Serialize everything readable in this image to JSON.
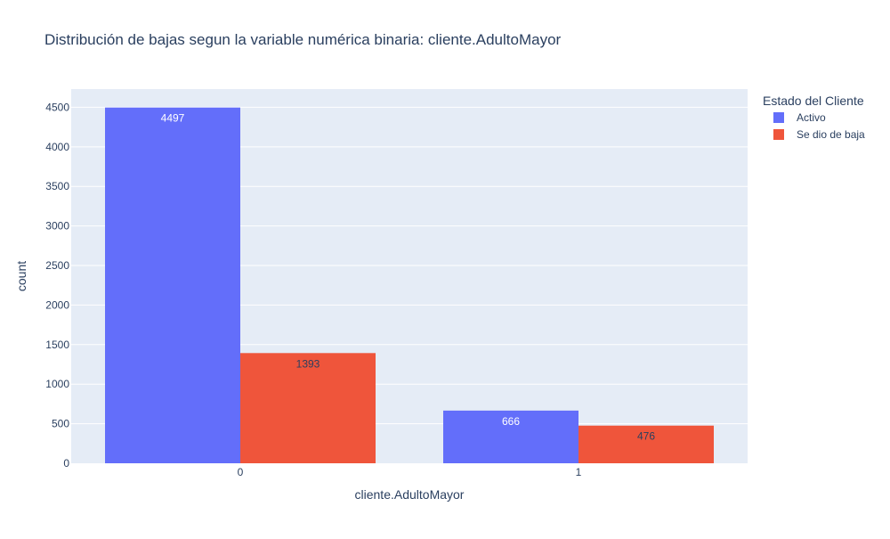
{
  "chart_data": {
    "type": "bar",
    "title": "Distribución de bajas segun la variable numérica binaria: cliente.AdultoMayor",
    "xlabel": "cliente.AdultoMayor",
    "ylabel": "count",
    "categories": [
      "0",
      "1"
    ],
    "series": [
      {
        "name": "Activo",
        "values": [
          4497,
          666
        ],
        "color": "#636efa"
      },
      {
        "name": "Se dio de baja",
        "values": [
          1393,
          476
        ],
        "color": "#ef553b"
      }
    ],
    "ylim": [
      0,
      4730
    ],
    "yticks": [
      0,
      500,
      1000,
      1500,
      2000,
      2500,
      3000,
      3500,
      4000,
      4500
    ],
    "legend": {
      "title": "Estado del Cliente",
      "placement": "top-right"
    },
    "grid": true,
    "plot_background": "#e5ecf6"
  }
}
